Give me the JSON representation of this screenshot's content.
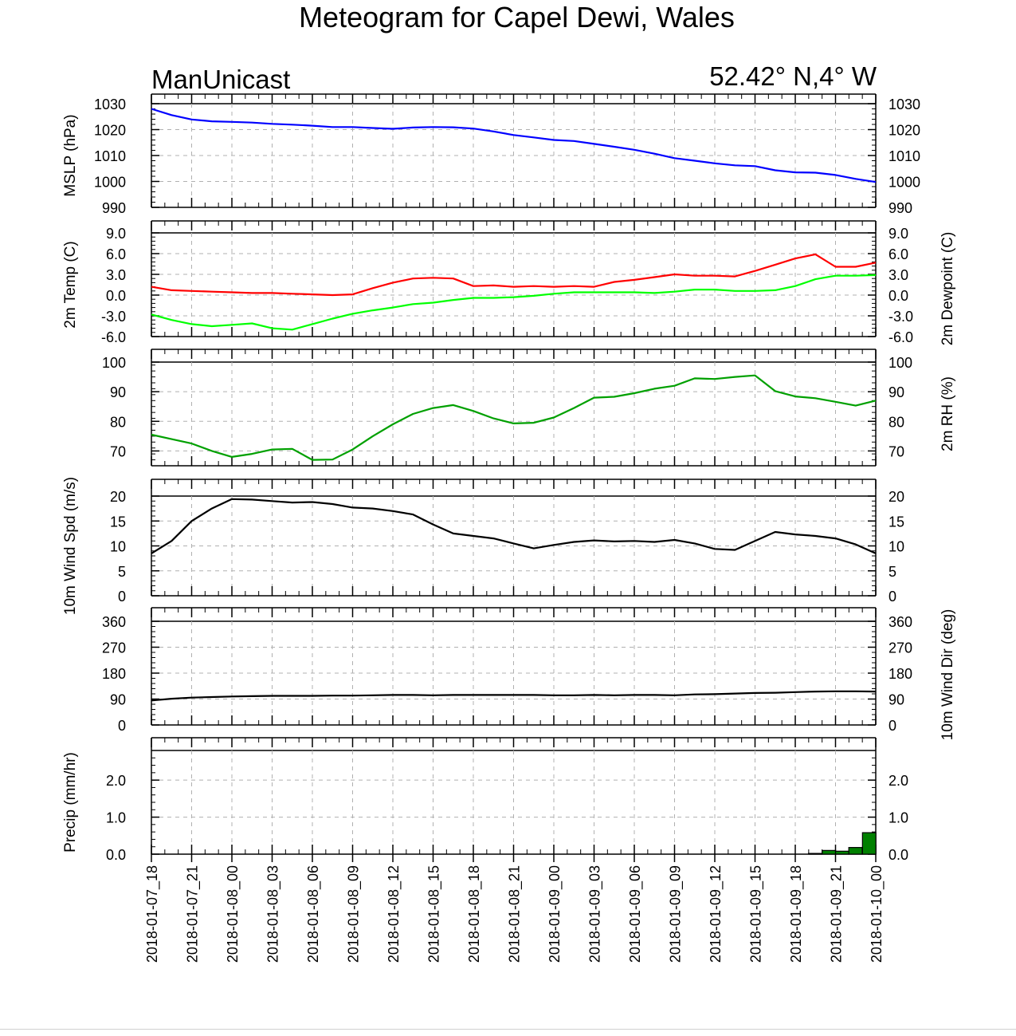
{
  "title": "Meteogram for Capel Dewi, Wales",
  "model": "ManUnicast",
  "location": "52.42° N,4° W",
  "time_labels": [
    "2018-01-07_18",
    "2018-01-07_21",
    "2018-01-08_00",
    "2018-01-08_03",
    "2018-01-08_06",
    "2018-01-08_09",
    "2018-01-08_12",
    "2018-01-08_15",
    "2018-01-08_18",
    "2018-01-08_21",
    "2018-01-09_00",
    "2018-01-09_03",
    "2018-01-09_06",
    "2018-01-09_09",
    "2018-01-09_12",
    "2018-01-09_15",
    "2018-01-09_18",
    "2018-01-09_21",
    "2018-01-10_00"
  ],
  "chart_data": [
    {
      "type": "line",
      "ylabel": "MSLP (hPa)",
      "ylim": [
        990,
        1030
      ],
      "yticks": [
        "1030",
        "1020",
        "1010",
        "1000",
        "990"
      ],
      "ytick_values": [
        1030,
        1020,
        1010,
        1000,
        990
      ],
      "series": [
        {
          "color": "#0000ff",
          "x": [
            0,
            0.5,
            1,
            1.5,
            2,
            2.5,
            3,
            3.5,
            4,
            4.5,
            5,
            5.5,
            6,
            6.5,
            7,
            7.5,
            8,
            8.5,
            9,
            9.5,
            10,
            10.5,
            11,
            11.5,
            12,
            12.5,
            13,
            13.5,
            14,
            14.5,
            15,
            15.5,
            16,
            16.5,
            17,
            17.5,
            18
          ],
          "values": [
            1028.0,
            1025.6,
            1023.9,
            1023.2,
            1023.0,
            1022.7,
            1022.2,
            1021.9,
            1021.5,
            1021.0,
            1021.0,
            1020.6,
            1020.3,
            1020.8,
            1021.0,
            1020.9,
            1020.4,
            1019.3,
            1017.9,
            1017.0,
            1016.0,
            1015.6,
            1014.5,
            1013.4,
            1012.2,
            1010.7,
            1009.0,
            1008.0,
            1007.0,
            1006.2,
            1005.9,
            1004.3,
            1003.5,
            1003.4,
            1002.5,
            1001.0,
            999.8
          ]
        }
      ]
    },
    {
      "type": "line",
      "ylabel": "2m Temp (C)",
      "ylabel_right": "2m Dewpoint (C)",
      "ylim": [
        -6,
        9
      ],
      "yticks": [
        "9.0",
        "6.0",
        "3.0",
        "0.0",
        "-3.0",
        "-6.0"
      ],
      "ytick_values": [
        9,
        6,
        3,
        0,
        -3,
        -6
      ],
      "series": [
        {
          "color": "#ff0000",
          "x": [
            0,
            0.5,
            1,
            1.5,
            2,
            2.5,
            3,
            3.5,
            4,
            4.5,
            5,
            5.5,
            6,
            6.5,
            7,
            7.5,
            8,
            8.5,
            9,
            9.5,
            10,
            10.5,
            11,
            11.5,
            12,
            12.5,
            13,
            13.5,
            14,
            14.5,
            15,
            15.5,
            16,
            16.5,
            17,
            17.5,
            18
          ],
          "values": [
            1.2,
            0.7,
            0.6,
            0.5,
            0.4,
            0.3,
            0.3,
            0.2,
            0.1,
            0.0,
            0.1,
            1.0,
            1.8,
            2.4,
            2.5,
            2.4,
            1.3,
            1.4,
            1.2,
            1.3,
            1.2,
            1.3,
            1.2,
            1.9,
            2.2,
            2.6,
            3.0,
            2.8,
            2.8,
            2.7,
            3.5,
            4.4,
            5.3,
            5.9,
            4.1,
            4.1,
            4.7
          ]
        },
        {
          "color": "#00ff00",
          "x": [
            0,
            0.5,
            1,
            1.5,
            2,
            2.5,
            3,
            3.5,
            4,
            4.5,
            5,
            5.5,
            6,
            6.5,
            7,
            7.5,
            8,
            8.5,
            9,
            9.5,
            10,
            10.5,
            11,
            11.5,
            12,
            12.5,
            13,
            13.5,
            14,
            14.5,
            15,
            15.5,
            16,
            16.5,
            17,
            17.5,
            18
          ],
          "values": [
            -2.8,
            -3.6,
            -4.2,
            -4.5,
            -4.3,
            -4.1,
            -4.8,
            -5.0,
            -4.2,
            -3.4,
            -2.7,
            -2.2,
            -1.8,
            -1.3,
            -1.1,
            -0.7,
            -0.4,
            -0.4,
            -0.3,
            -0.1,
            0.2,
            0.4,
            0.4,
            0.4,
            0.4,
            0.3,
            0.5,
            0.8,
            0.8,
            0.6,
            0.6,
            0.7,
            1.3,
            2.3,
            2.8,
            2.8,
            2.9
          ]
        }
      ]
    },
    {
      "type": "line",
      "ylabel": "2m RH (%)",
      "ylim": [
        65,
        100
      ],
      "yticks": [
        "100",
        "90",
        "80",
        "70"
      ],
      "ytick_values": [
        100,
        90,
        80,
        70
      ],
      "series": [
        {
          "color": "#00a000",
          "x": [
            0,
            0.5,
            1,
            1.5,
            2,
            2.5,
            3,
            3.5,
            4,
            4.5,
            5,
            5.5,
            6,
            6.5,
            7,
            7.5,
            8,
            8.5,
            9,
            9.5,
            10,
            10.5,
            11,
            11.5,
            12,
            12.5,
            13,
            13.5,
            14,
            14.5,
            15,
            15.5,
            16,
            16.5,
            17,
            17.5,
            18
          ],
          "values": [
            75.5,
            74.0,
            72.5,
            70.0,
            68.0,
            69.0,
            70.5,
            70.7,
            67.0,
            67.1,
            70.5,
            75.0,
            79.0,
            82.5,
            84.5,
            85.5,
            83.5,
            81.0,
            79.3,
            79.5,
            81.3,
            84.5,
            88.0,
            88.3,
            89.5,
            91.0,
            92.0,
            94.5,
            94.3,
            95.0,
            95.5,
            90.2,
            88.4,
            87.8,
            86.6,
            85.3,
            87.0
          ]
        }
      ]
    },
    {
      "type": "line",
      "ylabel": "10m Wind Spd (m/s)",
      "ylim": [
        0,
        20
      ],
      "yticks": [
        "20",
        "15",
        "10",
        "5",
        "0"
      ],
      "ytick_values": [
        20,
        15,
        10,
        5,
        0
      ],
      "series": [
        {
          "color": "#000000",
          "x": [
            0,
            0.5,
            1,
            1.5,
            2,
            2.5,
            3,
            3.5,
            4,
            4.5,
            5,
            5.5,
            6,
            6.5,
            7,
            7.5,
            8,
            8.5,
            9,
            9.5,
            10,
            10.5,
            11,
            11.5,
            12,
            12.5,
            13,
            13.5,
            14,
            14.5,
            15,
            15.5,
            16,
            16.5,
            17,
            17.5,
            18
          ],
          "values": [
            8.5,
            11.0,
            15.0,
            17.5,
            19.4,
            19.3,
            19.0,
            18.7,
            18.8,
            18.4,
            17.7,
            17.5,
            17.0,
            16.3,
            14.3,
            12.5,
            12.0,
            11.5,
            10.5,
            9.5,
            10.2,
            10.8,
            11.1,
            10.9,
            11.0,
            10.8,
            11.2,
            10.5,
            9.4,
            9.2,
            11.0,
            12.8,
            12.3,
            12.0,
            11.5,
            10.3,
            8.5
          ]
        }
      ]
    },
    {
      "type": "line",
      "ylabel": "10m Wind Dir (deg)",
      "ylim": [
        0,
        360
      ],
      "yticks": [
        "360",
        "270",
        "180",
        "90",
        "0"
      ],
      "ytick_values": [
        360,
        270,
        180,
        90,
        0
      ],
      "series": [
        {
          "color": "#000000",
          "x": [
            0,
            0.5,
            1,
            1.5,
            2,
            2.5,
            3,
            3.5,
            4,
            4.5,
            5,
            5.5,
            6,
            6.5,
            7,
            7.5,
            8,
            8.5,
            9,
            9.5,
            10,
            10.5,
            11,
            11.5,
            12,
            12.5,
            13,
            13.5,
            14,
            14.5,
            15,
            15.5,
            16,
            16.5,
            17,
            17.5,
            18
          ],
          "values": [
            85,
            91,
            95,
            97,
            99,
            100,
            101,
            101,
            101,
            102,
            102,
            103,
            104,
            104,
            103,
            104,
            104,
            104,
            104,
            104,
            103,
            103,
            104,
            103,
            104,
            104,
            103,
            106,
            107,
            109,
            111,
            112,
            114,
            116,
            117,
            117,
            116
          ]
        }
      ]
    },
    {
      "type": "bar",
      "ylabel": "Precip (mm/hr)",
      "ylim": [
        0,
        2.8
      ],
      "yticks": [
        "2.0",
        "1.0",
        "0.0"
      ],
      "ytick_values": [
        2.0,
        1.0,
        0.0
      ],
      "bar_color": "#008000",
      "bar_width_hours": 1,
      "bars": [
        {
          "x": 16.33,
          "value": 0.02
        },
        {
          "x": 16.67,
          "value": 0.1
        },
        {
          "x": 17.0,
          "value": 0.08
        },
        {
          "x": 17.33,
          "value": 0.18
        },
        {
          "x": 17.67,
          "value": 0.58
        }
      ]
    }
  ]
}
